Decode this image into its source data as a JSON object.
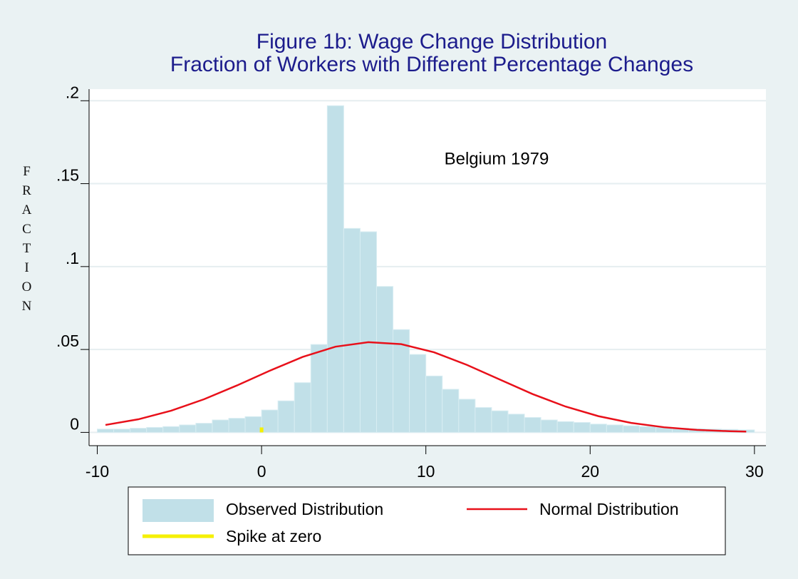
{
  "chart_data": {
    "type": "histogram",
    "title": "Figure 1b: Wage Change Distribution",
    "subtitle": "Fraction of Workers with Different Percentage Changes",
    "y_label": "FRACTION",
    "annotation": "Belgium 1979",
    "xlim": [
      -10.5,
      30.7
    ],
    "ylim": [
      -0.008,
      0.207
    ],
    "xticks": [
      -10,
      0,
      10,
      20,
      30
    ],
    "yticks": [
      0,
      {
        "value": 0.05,
        "label": ".05"
      },
      {
        "value": 0.1,
        "label": ".1"
      },
      {
        "value": 0.15,
        "label": ".15"
      },
      {
        "value": 0.2,
        "label": ".2"
      }
    ],
    "grid": true,
    "histogram": {
      "name": "Observed Distribution",
      "color": "#c1e0e8",
      "bins": [
        -10,
        -9,
        -8,
        -7,
        -6,
        -5,
        -4,
        -3,
        -2,
        -1,
        0,
        1,
        2,
        3,
        4,
        5,
        6,
        7,
        8,
        9,
        10,
        11,
        12,
        13,
        14,
        15,
        16,
        17,
        18,
        19,
        20,
        21,
        22,
        23,
        24,
        25,
        26,
        27,
        28,
        29,
        30
      ],
      "values": [
        0.002,
        0.002,
        0.0025,
        0.003,
        0.0035,
        0.0045,
        0.0055,
        0.0075,
        0.0085,
        0.0095,
        0.0135,
        0.019,
        0.03,
        0.053,
        0.197,
        0.123,
        0.121,
        0.088,
        0.062,
        0.047,
        0.034,
        0.026,
        0.02,
        0.015,
        0.013,
        0.011,
        0.009,
        0.0075,
        0.0065,
        0.006,
        0.005,
        0.0045,
        0.004,
        0.0035,
        0.003,
        0.0025,
        0.0022,
        0.002,
        0.0018,
        0.0015
      ]
    },
    "normal": {
      "name": "Normal Distribution",
      "color": "#e8101a",
      "x": [
        -9.5,
        -7.5,
        -5.5,
        -3.5,
        -1.5,
        0.5,
        2.5,
        4.5,
        6.5,
        8.5,
        10.5,
        12.5,
        14.5,
        16.5,
        18.5,
        20.5,
        22.5,
        24.5,
        26.5,
        28.5,
        29.5
      ],
      "y": [
        0.0045,
        0.0079,
        0.0131,
        0.02,
        0.0283,
        0.0372,
        0.0455,
        0.0517,
        0.0544,
        0.0532,
        0.0483,
        0.0407,
        0.0319,
        0.0231,
        0.0156,
        0.0098,
        0.0057,
        0.0031,
        0.0015,
        0.0007,
        0.0005
      ]
    },
    "spike": {
      "name": "Spike at zero",
      "color": "#f5f000",
      "x": 0,
      "value": 0.003
    }
  }
}
